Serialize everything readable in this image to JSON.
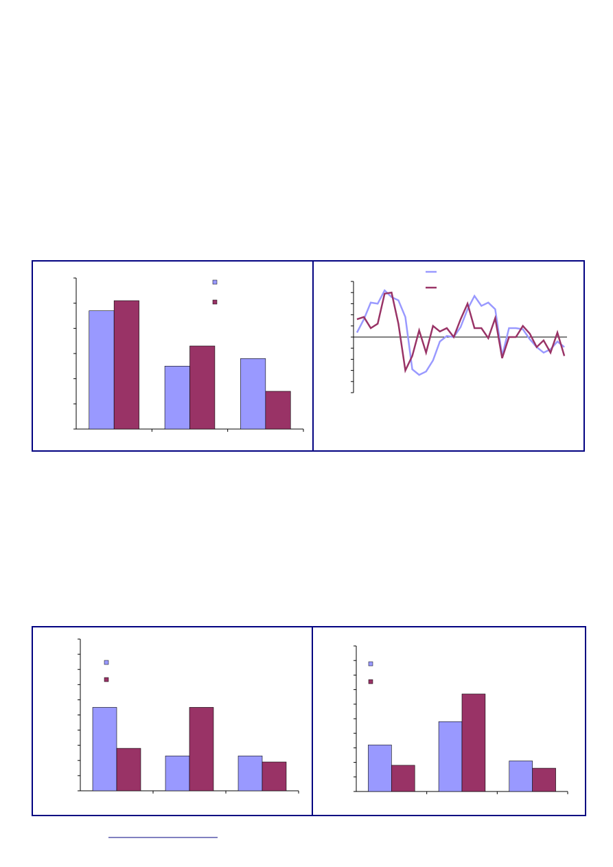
{
  "chart_data": [
    {
      "type": "bar",
      "categories": [
        null,
        null,
        null
      ],
      "ylim": [
        0,
        6
      ],
      "yticks": [
        0,
        1,
        2,
        3,
        4,
        5,
        6
      ],
      "series": [
        {
          "color": "#9999ff",
          "values": [
            4.7,
            2.5,
            2.8
          ]
        },
        {
          "color": "#993366",
          "values": [
            5.1,
            3.3,
            1.5
          ]
        }
      ]
    },
    {
      "type": "line",
      "categories": [
        null,
        null,
        null,
        null,
        null,
        null,
        null,
        null,
        null,
        null,
        null,
        null,
        null,
        null,
        null,
        null,
        null,
        null,
        null,
        null,
        null,
        null,
        null,
        null,
        null,
        null,
        null,
        null,
        null,
        null,
        null
      ],
      "ylim": [
        -5,
        5
      ],
      "yticks": [
        -5,
        -4,
        -3,
        -2,
        -1,
        0,
        1,
        2,
        3,
        4,
        5
      ],
      "series": [
        {
          "color": "#9999ff",
          "values": [
            0.4,
            1.6,
            3.1,
            3.0,
            4.2,
            3.6,
            3.3,
            1.8,
            -2.9,
            -3.4,
            -3.1,
            -2.1,
            -0.4,
            0.1,
            0,
            0.9,
            2.5,
            3.7,
            2.8,
            3.1,
            2.5,
            -1.7,
            0.8,
            0.8,
            0.7,
            -0.2,
            -0.9,
            -1.4,
            -1.1,
            -0.4,
            -0.9
          ]
        },
        {
          "color": "#993366",
          "values": [
            1.6,
            1.8,
            0.8,
            1.2,
            3.9,
            4.0,
            1.2,
            -3.0,
            -1.7,
            0.6,
            -1.4,
            1.0,
            0.5,
            0.8,
            0,
            1.6,
            3.0,
            0.8,
            0.8,
            -0.1,
            1.7,
            -1.9,
            0,
            0,
            1.0,
            0.3,
            -0.9,
            -0.3,
            -1.4,
            0.4,
            -1.7
          ]
        }
      ]
    },
    {
      "type": "bar",
      "categories": [
        null,
        null,
        null
      ],
      "ylim": [
        0,
        10
      ],
      "yticks": [
        0,
        1,
        2,
        3,
        4,
        5,
        6,
        7,
        8,
        9,
        10
      ],
      "series": [
        {
          "color": "#9999ff",
          "values": [
            5.5,
            2.3,
            2.3
          ]
        },
        {
          "color": "#993366",
          "values": [
            2.8,
            5.5,
            1.9
          ]
        }
      ]
    },
    {
      "type": "bar",
      "categories": [
        null,
        null,
        null
      ],
      "ylim": [
        0,
        10
      ],
      "yticks": [
        0,
        1,
        2,
        3,
        4,
        5,
        6,
        7,
        8,
        9,
        10
      ],
      "series": [
        {
          "color": "#9999ff",
          "values": [
            3.2,
            4.8,
            2.1
          ]
        },
        {
          "color": "#993366",
          "values": [
            1.8,
            6.7,
            1.6
          ]
        }
      ]
    }
  ]
}
